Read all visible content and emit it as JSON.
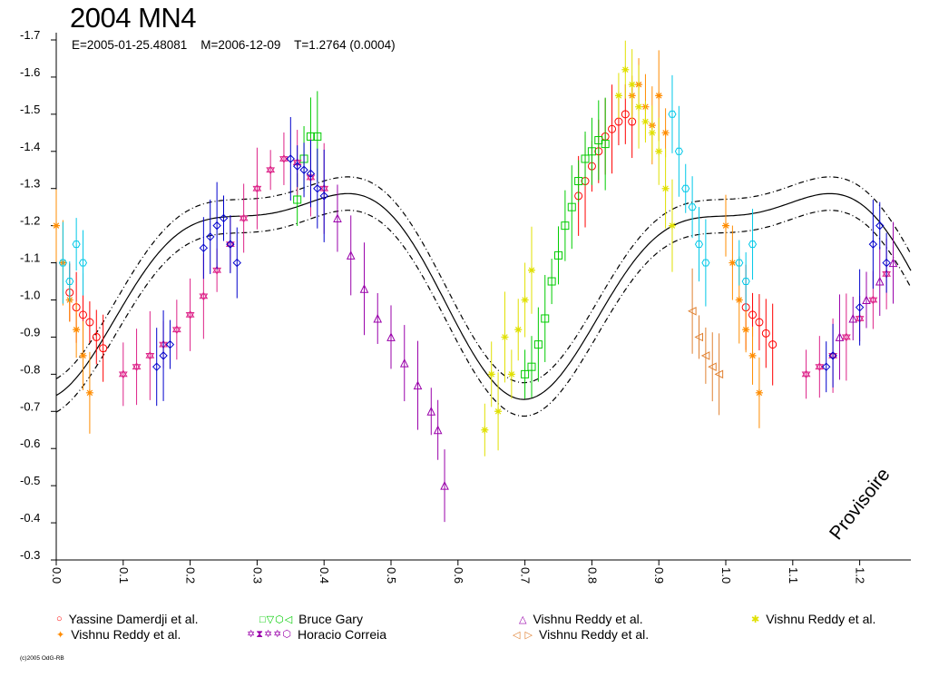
{
  "chart_data": {
    "type": "scatter",
    "title": "2004 MN4",
    "subtitle": "E=2005-01-25.48081    M=2006-12-09    T=1.2764 (0.0004)",
    "watermark": "Provisoire",
    "credit": "(c)2005 OdG-RB",
    "xlabel": "",
    "ylabel": "",
    "xlim": [
      0.0,
      1.2764
    ],
    "ylim": [
      -0.3,
      -1.7
    ],
    "y_axis_reversed": true,
    "x_ticks": [
      "0.0",
      "0.1",
      "0.2",
      "0.3",
      "0.4",
      "0.5",
      "0.6",
      "0.7",
      "0.8",
      "0.9",
      "1.0",
      "1.1",
      "1.2"
    ],
    "y_ticks": [
      "-1.7",
      "-1.6",
      "-1.5",
      "-1.4",
      "-1.3",
      "-1.2",
      "-1.1",
      "-1.0",
      "-0.9",
      "-0.8",
      "-0.7",
      "-0.6",
      "-0.5",
      "-0.4",
      "-0.3"
    ],
    "grid": false,
    "model_curve": {
      "mean": -1.075,
      "amp1": 0.255,
      "phase1": 0.32,
      "amp2": -0.09,
      "phase2": 0.15,
      "envelope": 0.045
    },
    "series": [
      {
        "name": "Yassine Damerdji et al.",
        "color": "#ff0000",
        "marker": "circle",
        "x": [
          0.02,
          0.03,
          0.04,
          0.05,
          0.06,
          0.07,
          0.78,
          0.79,
          0.8,
          0.81,
          0.82,
          0.83,
          0.84,
          0.85,
          0.86,
          1.03,
          1.04,
          1.05,
          1.06,
          1.07
        ],
        "y": [
          -1.02,
          -0.98,
          -0.96,
          -0.94,
          -0.9,
          -0.87,
          -1.28,
          -1.32,
          -1.36,
          -1.4,
          -1.44,
          -1.46,
          -1.48,
          -1.5,
          -1.48,
          -0.98,
          -0.96,
          -0.94,
          -0.91,
          -0.88
        ]
      },
      {
        "name": "Vishnu Reddy et al.",
        "color": "#ff8c00",
        "marker": "star",
        "x": [
          0.0,
          0.01,
          0.02,
          0.03,
          0.04,
          0.05,
          0.86,
          0.87,
          0.88,
          0.89,
          0.9,
          0.91,
          1.0,
          1.01,
          1.02,
          1.03,
          1.04,
          1.05
        ],
        "y": [
          -1.2,
          -1.1,
          -1.0,
          -0.92,
          -0.85,
          -0.75,
          -1.55,
          -1.58,
          -1.52,
          -1.47,
          -1.55,
          -1.45,
          -1.2,
          -1.1,
          -1.0,
          -0.92,
          -0.85,
          -0.75
        ]
      },
      {
        "name": "Bruce Gary",
        "color": "#00cc00",
        "marker": "square",
        "x": [
          0.36,
          0.37,
          0.38,
          0.39,
          0.7,
          0.71,
          0.72,
          0.73,
          0.74,
          0.75,
          0.76,
          0.77,
          0.78,
          0.79,
          0.8,
          0.81,
          0.82
        ],
        "y": [
          -1.27,
          -1.38,
          -1.44,
          -1.44,
          -0.8,
          -0.82,
          -0.88,
          -0.95,
          -1.05,
          -1.12,
          -1.2,
          -1.25,
          -1.32,
          -1.38,
          -1.4,
          -1.43,
          -1.42
        ]
      },
      {
        "name": "Horacio Correia",
        "color": "#00c8e8",
        "marker": "hexagon",
        "x": [
          0.01,
          0.02,
          0.03,
          0.04,
          0.92,
          0.93,
          0.94,
          0.95,
          0.96,
          0.97,
          1.02,
          1.03,
          1.04
        ],
        "y": [
          -1.1,
          -1.05,
          -1.15,
          -1.1,
          -1.5,
          -1.4,
          -1.3,
          -1.25,
          -1.15,
          -1.1,
          -1.1,
          -1.05,
          -1.15
        ]
      },
      {
        "name": "Vishnu Reddy et al.",
        "color": "#9900aa",
        "marker": "triangle",
        "x": [
          0.42,
          0.44,
          0.46,
          0.48,
          0.5,
          0.52,
          0.54,
          0.56,
          0.57,
          0.58,
          1.17,
          1.19,
          1.21,
          1.23,
          1.25
        ],
        "y": [
          -1.22,
          -1.12,
          -1.03,
          -0.95,
          -0.9,
          -0.83,
          -0.77,
          -0.7,
          -0.65,
          -0.5,
          -0.9,
          -0.95,
          -1.0,
          -1.05,
          -1.1
        ]
      },
      {
        "name": "Vishnu Reddy et al.",
        "color": "#dd2288",
        "marker": "star6",
        "x": [
          0.1,
          0.12,
          0.14,
          0.16,
          0.18,
          0.2,
          0.22,
          0.24,
          0.26,
          0.28,
          0.3,
          0.32,
          0.34,
          0.36,
          0.38,
          0.4,
          1.12,
          1.14,
          1.16,
          1.18,
          1.2,
          1.22,
          1.24
        ],
        "y": [
          -0.8,
          -0.82,
          -0.85,
          -0.88,
          -0.92,
          -0.96,
          -1.01,
          -1.08,
          -1.15,
          -1.22,
          -1.3,
          -1.35,
          -1.38,
          -1.37,
          -1.33,
          -1.3,
          -0.8,
          -0.82,
          -0.85,
          -0.9,
          -0.95,
          -1.0,
          -1.07
        ]
      },
      {
        "name": "Horacio Correia",
        "color": "#0000cc",
        "marker": "diamond",
        "x": [
          0.15,
          0.16,
          0.17,
          0.22,
          0.23,
          0.24,
          0.25,
          0.26,
          0.27,
          0.35,
          0.36,
          0.37,
          0.38,
          0.39,
          0.4,
          1.15,
          1.16,
          1.2,
          1.22,
          1.23,
          1.24
        ],
        "y": [
          -0.82,
          -0.85,
          -0.88,
          -1.14,
          -1.17,
          -1.2,
          -1.22,
          -1.15,
          -1.1,
          -1.38,
          -1.36,
          -1.35,
          -1.34,
          -1.3,
          -1.28,
          -0.82,
          -0.85,
          -0.98,
          -1.15,
          -1.2,
          -1.1
        ]
      },
      {
        "name": "Vishnu Reddy et al.",
        "color": "#e0e000",
        "marker": "star",
        "x": [
          0.64,
          0.65,
          0.66,
          0.67,
          0.68,
          0.69,
          0.7,
          0.71,
          0.84,
          0.85,
          0.86,
          0.87,
          0.88,
          0.89,
          0.9,
          0.91,
          0.92
        ],
        "y": [
          -0.65,
          -0.8,
          -0.7,
          -0.9,
          -0.8,
          -0.92,
          -1.0,
          -1.08,
          -1.55,
          -1.62,
          -1.58,
          -1.52,
          -1.48,
          -1.45,
          -1.4,
          -1.3,
          -1.2
        ]
      },
      {
        "name": "Vishnu Reddy et al.",
        "color": "#e08030",
        "marker": "tri-left",
        "x": [
          0.95,
          0.96,
          0.97,
          0.98,
          0.99
        ],
        "y": [
          -0.97,
          -0.9,
          -0.85,
          -0.82,
          -0.8
        ]
      }
    ],
    "legend": [
      {
        "label": "Yassine Damerdji et al.",
        "symbols": "○",
        "color": "#ff0000"
      },
      {
        "label": "Bruce Gary",
        "symbols": "□▽⬡◁",
        "color": "#00cc00"
      },
      {
        "label": "Vishnu Reddy et al.",
        "symbols": "△",
        "color": "#9900aa"
      },
      {
        "label": "Vishnu Reddy et al.",
        "symbols": "✱",
        "color": "#e0e000"
      },
      {
        "label": "Vishnu Reddy et al.",
        "symbols": "✦",
        "color": "#ff8c00"
      },
      {
        "label": "Horacio Correia",
        "symbols": "✡⧗✡✡⬡",
        "color": "#9900aa"
      },
      {
        "label": "Vishnu Reddy et al.",
        "symbols": "◁ ▷",
        "color": "#e08030"
      }
    ]
  }
}
